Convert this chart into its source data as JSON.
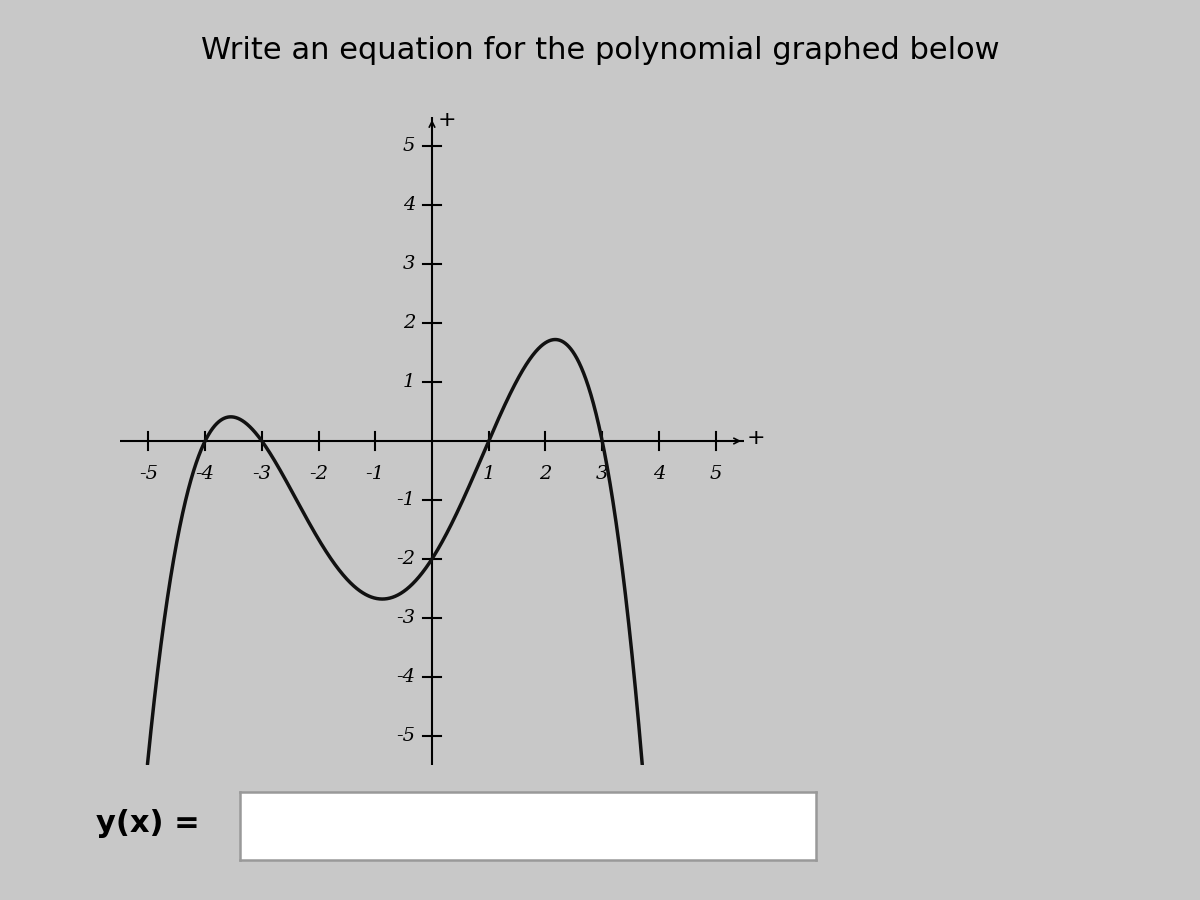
{
  "title": "Write an equation for the polynomial graphed below",
  "title_fontsize": 22,
  "title_fontweight": "normal",
  "title_fontfamily": "sans-serif",
  "xlim": [
    -5.5,
    5.5
  ],
  "ylim": [
    -5.5,
    5.5
  ],
  "xticks": [
    -5,
    -4,
    -3,
    -2,
    -1,
    1,
    2,
    3,
    4,
    5
  ],
  "yticks": [
    -5,
    -4,
    -3,
    -2,
    -1,
    1,
    2,
    3,
    4,
    5
  ],
  "roots": [
    -4,
    -3,
    1,
    3
  ],
  "leading_coeff": -0.0556,
  "curve_color": "#111111",
  "curve_linewidth": 2.5,
  "axis_linewidth": 1.5,
  "tick_fontsize": 14,
  "background_color": "#c8c8c8",
  "plot_bg_color": "#c8c8c8",
  "ylabel_text": "y(x) =",
  "ylabel_fontsize": 22,
  "ylabel_fontweight": "bold"
}
